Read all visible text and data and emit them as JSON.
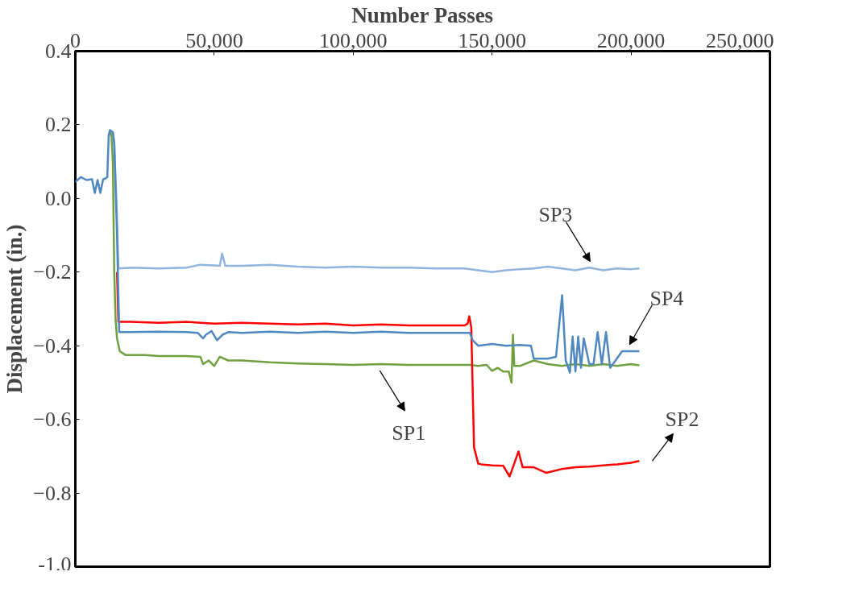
{
  "chart_data": {
    "type": "line",
    "xlabel": "Number Passes",
    "ylabel": "Displacement (in.)",
    "xlim": [
      0,
      250000
    ],
    "xticks": [
      {
        "value": 0,
        "label": "0"
      },
      {
        "value": 50000,
        "label": "50,000"
      },
      {
        "value": 100000,
        "label": "100,000"
      },
      {
        "value": 150000,
        "label": "150,000"
      },
      {
        "value": 200000,
        "label": "200,000"
      },
      {
        "value": 250000,
        "label": "250,000"
      }
    ],
    "ylim": [
      -1.0,
      0.4
    ],
    "yticks": [
      {
        "value": -1.0,
        "label": "-1.0"
      },
      -0.8,
      -0.6,
      -0.4,
      -0.2,
      {
        "value": 0,
        "label": "0.0"
      },
      0.2,
      0.4
    ],
    "grid": false,
    "marker": "none",
    "line_style": "solid",
    "series": [
      {
        "color": "#70a040",
        "x": [
          12000,
          12500,
          13000,
          13500,
          14000,
          14500,
          15000,
          16000,
          18000,
          25000,
          30000,
          40000,
          45000,
          46000,
          48000,
          50000,
          52000,
          55000,
          60000,
          70000,
          80000,
          90000,
          100000,
          110000,
          120000,
          130000,
          138000,
          142000,
          145000,
          148000,
          150000,
          152000,
          154000,
          156000,
          157000,
          157500,
          158000,
          160000,
          165000,
          170000,
          175000,
          180000,
          185000,
          190000,
          195000,
          200000,
          203000
        ],
        "values": [
          0.17,
          0.185,
          0.17,
          0.1,
          -0.2,
          -0.33,
          -0.38,
          -0.415,
          -0.425,
          -0.425,
          -0.428,
          -0.428,
          -0.43,
          -0.45,
          -0.44,
          -0.455,
          -0.43,
          -0.44,
          -0.44,
          -0.445,
          -0.448,
          -0.45,
          -0.452,
          -0.45,
          -0.452,
          -0.452,
          -0.452,
          -0.452,
          -0.455,
          -0.452,
          -0.468,
          -0.46,
          -0.47,
          -0.47,
          -0.5,
          -0.37,
          -0.455,
          -0.455,
          -0.44,
          -0.45,
          -0.455,
          -0.45,
          -0.455,
          -0.45,
          -0.455,
          -0.45,
          -0.453
        ]
      },
      {
        "color": "#ff0000",
        "x": [
          15000,
          15500,
          20000,
          30000,
          40000,
          50000,
          60000,
          70000,
          80000,
          90000,
          100000,
          110000,
          120000,
          130000,
          140000,
          141200,
          141800,
          142500,
          143500,
          145000,
          146000,
          150000,
          154000,
          156300,
          157500,
          159500,
          161000,
          165000,
          169400,
          175000,
          180000,
          185000,
          190000,
          195000,
          200000,
          203000
        ],
        "values": [
          -0.2,
          -0.335,
          -0.335,
          -0.338,
          -0.335,
          -0.34,
          -0.338,
          -0.34,
          -0.342,
          -0.34,
          -0.345,
          -0.342,
          -0.345,
          -0.345,
          -0.345,
          -0.34,
          -0.32,
          -0.35,
          -0.676,
          -0.72,
          -0.722,
          -0.725,
          -0.726,
          -0.755,
          -0.73,
          -0.687,
          -0.73,
          -0.73,
          -0.745,
          -0.735,
          -0.73,
          -0.728,
          -0.725,
          -0.722,
          -0.718,
          -0.713
        ]
      },
      {
        "color": "#8fb4e0",
        "x": [
          13500,
          14000,
          15000,
          15500,
          20000,
          30000,
          40000,
          45000,
          50000,
          52000,
          52800,
          54000,
          60000,
          70000,
          80000,
          90000,
          100000,
          110000,
          120000,
          130000,
          140000,
          145000,
          150000,
          155000,
          160000,
          165000,
          170000,
          175000,
          180000,
          185000,
          190000,
          195000,
          200000,
          203000
        ],
        "values": [
          0.18,
          0.15,
          -0.05,
          -0.19,
          -0.188,
          -0.19,
          -0.188,
          -0.18,
          -0.182,
          -0.183,
          -0.15,
          -0.183,
          -0.183,
          -0.18,
          -0.185,
          -0.188,
          -0.185,
          -0.188,
          -0.188,
          -0.19,
          -0.19,
          -0.195,
          -0.2,
          -0.195,
          -0.192,
          -0.19,
          -0.185,
          -0.19,
          -0.195,
          -0.188,
          -0.195,
          -0.19,
          -0.192,
          -0.19
        ]
      },
      {
        "color": "#4f87c0",
        "x": [
          0,
          2000,
          4000,
          6000,
          7000,
          8000,
          9000,
          10000,
          11000,
          11500,
          12000,
          12500,
          13500,
          14000,
          15000,
          15800,
          20000,
          30000,
          40000,
          44000,
          46000,
          47000,
          49000,
          51000,
          53000,
          55000,
          60000,
          70000,
          80000,
          90000,
          100000,
          110000,
          120000,
          130000,
          140000,
          142000,
          143000,
          145000,
          150000,
          155000,
          160000,
          164000,
          165000,
          170000,
          173000,
          175200,
          176500,
          178000,
          179000,
          180000,
          181000,
          182000,
          183000,
          185000,
          186500,
          188000,
          189500,
          191000,
          192500,
          196800,
          200000,
          203000
        ],
        "values": [
          0.045,
          0.058,
          0.05,
          0.052,
          0.015,
          0.05,
          0.015,
          0.052,
          0.055,
          0.058,
          0.17,
          0.185,
          0.18,
          0.15,
          -0.1,
          -0.363,
          -0.363,
          -0.362,
          -0.363,
          -0.365,
          -0.38,
          -0.37,
          -0.36,
          -0.385,
          -0.37,
          -0.363,
          -0.365,
          -0.362,
          -0.365,
          -0.362,
          -0.365,
          -0.362,
          -0.365,
          -0.365,
          -0.365,
          -0.365,
          -0.385,
          -0.4,
          -0.395,
          -0.4,
          -0.398,
          -0.4,
          -0.435,
          -0.435,
          -0.43,
          -0.263,
          -0.44,
          -0.473,
          -0.375,
          -0.47,
          -0.375,
          -0.46,
          -0.38,
          -0.45,
          -0.45,
          -0.363,
          -0.45,
          -0.363,
          -0.46,
          -0.415,
          -0.415,
          -0.415
        ]
      }
    ],
    "annotations": [
      {
        "text": "SP1",
        "x": 109000,
        "y": -0.45
      },
      {
        "text": "SP2",
        "x": 203000,
        "y": -0.713
      },
      {
        "text": "SP3",
        "x": 185300,
        "y": -0.18
      },
      {
        "text": "SP4",
        "x": 199500,
        "y": -0.41
      }
    ]
  }
}
